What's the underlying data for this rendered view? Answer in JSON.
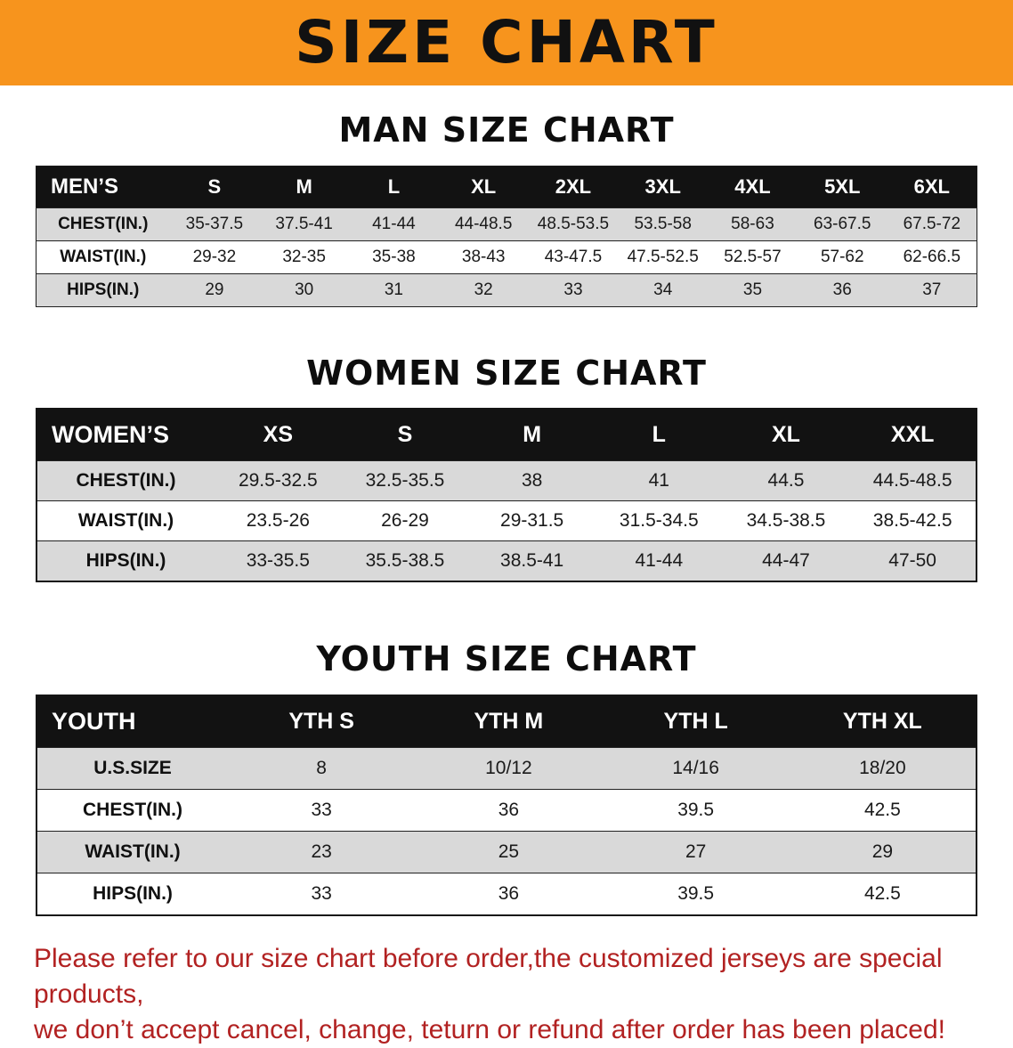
{
  "banner": {
    "title": "SIZE CHART",
    "bg_color": "#F7941D",
    "text_color": "#111111"
  },
  "colors": {
    "banner_orange": "#F7941D",
    "table_header_black": "#121212",
    "row_shade_gray": "#D9D9D9",
    "disclaimer_red": "#B22222"
  },
  "sections": {
    "men": {
      "heading": "MAN SIZE CHART",
      "corner_label": "MEN’S",
      "columns": [
        "S",
        "M",
        "L",
        "XL",
        "2XL",
        "3XL",
        "4XL",
        "5XL",
        "6XL"
      ],
      "rows": [
        {
          "label": "CHEST(IN.)",
          "values": [
            "35-37.5",
            "37.5-41",
            "41-44",
            "44-48.5",
            "48.5-53.5",
            "53.5-58",
            "58-63",
            "63-67.5",
            "67.5-72"
          ]
        },
        {
          "label": "WAIST(IN.)",
          "values": [
            "29-32",
            "32-35",
            "35-38",
            "38-43",
            "43-47.5",
            "47.5-52.5",
            "52.5-57",
            "57-62",
            "62-66.5"
          ]
        },
        {
          "label": "HIPS(IN.)",
          "values": [
            "29",
            "30",
            "31",
            "32",
            "33",
            "34",
            "35",
            "36",
            "37"
          ]
        }
      ]
    },
    "women": {
      "heading": "WOMEN SIZE CHART",
      "corner_label": "WOMEN’S",
      "columns": [
        "XS",
        "S",
        "M",
        "L",
        "XL",
        "XXL"
      ],
      "rows": [
        {
          "label": "CHEST(IN.)",
          "values": [
            "29.5-32.5",
            "32.5-35.5",
            "38",
            "41",
            "44.5",
            "44.5-48.5"
          ]
        },
        {
          "label": "WAIST(IN.)",
          "values": [
            "23.5-26",
            "26-29",
            "29-31.5",
            "31.5-34.5",
            "34.5-38.5",
            "38.5-42.5"
          ]
        },
        {
          "label": "HIPS(IN.)",
          "values": [
            "33-35.5",
            "35.5-38.5",
            "38.5-41",
            "41-44",
            "44-47",
            "47-50"
          ]
        }
      ]
    },
    "youth": {
      "heading": "YOUTH SIZE CHART",
      "corner_label": "YOUTH",
      "columns": [
        "YTH S",
        "YTH M",
        "YTH L",
        "YTH XL"
      ],
      "rows": [
        {
          "label": "U.S.SIZE",
          "values": [
            "8",
            "10/12",
            "14/16",
            "18/20"
          ]
        },
        {
          "label": "CHEST(IN.)",
          "values": [
            "33",
            "36",
            "39.5",
            "42.5"
          ]
        },
        {
          "label": "WAIST(IN.)",
          "values": [
            "23",
            "25",
            "27",
            "29"
          ]
        },
        {
          "label": "HIPS(IN.)",
          "values": [
            "33",
            "36",
            "39.5",
            "42.5"
          ]
        }
      ]
    }
  },
  "disclaimer": {
    "line1": "Please refer to our size chart before order,the customized jerseys are special products,",
    "line2": "we don’t accept cancel, change, teturn or refund after order has been placed!"
  }
}
